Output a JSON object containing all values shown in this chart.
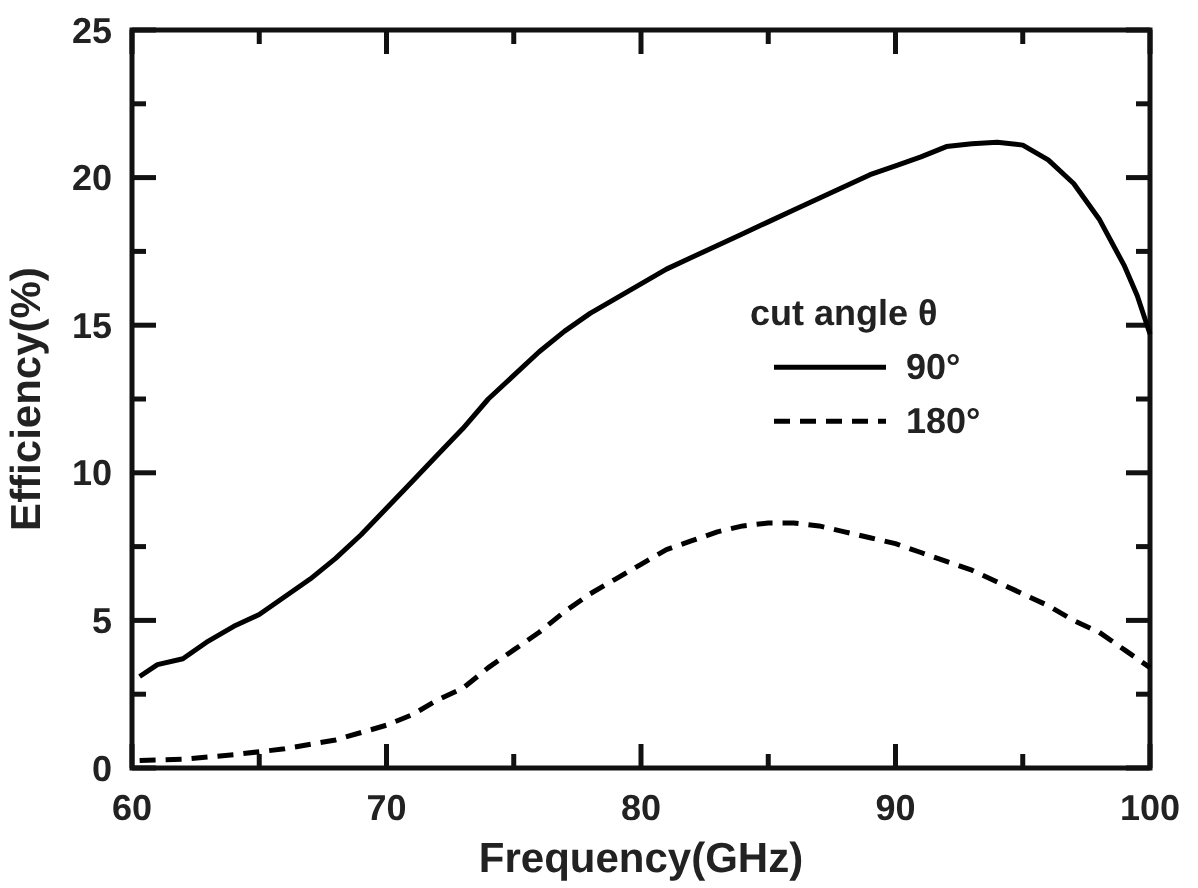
{
  "chart_data": {
    "type": "line",
    "xlabel": "Frequency(GHz)",
    "ylabel": "Efficiency(%)",
    "legend_title": "cut angle θ",
    "legend": "right",
    "grid": false,
    "marker": "none",
    "xlim": [
      60,
      100
    ],
    "xticks": [
      60,
      {
        "value": 65,
        "label": null
      },
      70,
      {
        "value": 75,
        "label": null
      },
      80,
      {
        "value": 85,
        "label": null
      },
      90,
      {
        "value": 95,
        "label": null
      },
      100
    ],
    "ylim": [
      0,
      25
    ],
    "yticks": [
      0,
      {
        "value": 2.5,
        "label": null
      },
      5,
      {
        "value": 7.5,
        "label": null
      },
      10,
      {
        "value": 12.5,
        "label": null
      },
      15,
      {
        "value": 17.5,
        "label": null
      },
      20,
      {
        "value": 22.5,
        "label": null
      },
      25
    ],
    "x": [
      60.3,
      61,
      62,
      63,
      64,
      65,
      66,
      67,
      68,
      69,
      70,
      71,
      72,
      73,
      74,
      75,
      76,
      77,
      78,
      79,
      80,
      81,
      82,
      83,
      84,
      85,
      86,
      87,
      88,
      89,
      90,
      91,
      92,
      93,
      94,
      95,
      96,
      97,
      98,
      99,
      99.5,
      100
    ],
    "series": [
      {
        "name": "90°",
        "color": "#000000",
        "line_style": "solid",
        "values": [
          3.1,
          3.5,
          3.7,
          4.3,
          4.8,
          5.2,
          5.8,
          6.4,
          7.1,
          7.9,
          8.8,
          9.7,
          10.6,
          11.5,
          12.5,
          13.3,
          14.1,
          14.8,
          15.4,
          15.9,
          16.4,
          16.9,
          17.3,
          17.7,
          18.1,
          18.5,
          18.9,
          19.3,
          19.7,
          20.1,
          20.4,
          20.7,
          21.05,
          21.15,
          21.2,
          21.1,
          20.6,
          19.8,
          18.6,
          17.0,
          16.0,
          14.7
        ]
      },
      {
        "name": "180°",
        "color": "#000000",
        "line_style": "dashed",
        "x": [
          60.3,
          62,
          64,
          66,
          68,
          70,
          71,
          72,
          73,
          74,
          75,
          76,
          77,
          78,
          79,
          80,
          81,
          82,
          83,
          84,
          85,
          86,
          87,
          88,
          89,
          90,
          91,
          92,
          93,
          94,
          95,
          96,
          97,
          98,
          99,
          100
        ],
        "values": [
          0.25,
          0.3,
          0.45,
          0.65,
          0.95,
          1.45,
          1.8,
          2.3,
          2.7,
          3.4,
          4.0,
          4.6,
          5.3,
          5.9,
          6.4,
          6.9,
          7.4,
          7.7,
          8.0,
          8.2,
          8.3,
          8.3,
          8.2,
          8.0,
          7.8,
          7.6,
          7.3,
          7.0,
          6.7,
          6.3,
          5.9,
          5.5,
          5.0,
          4.6,
          4.0,
          3.4
        ]
      }
    ]
  }
}
